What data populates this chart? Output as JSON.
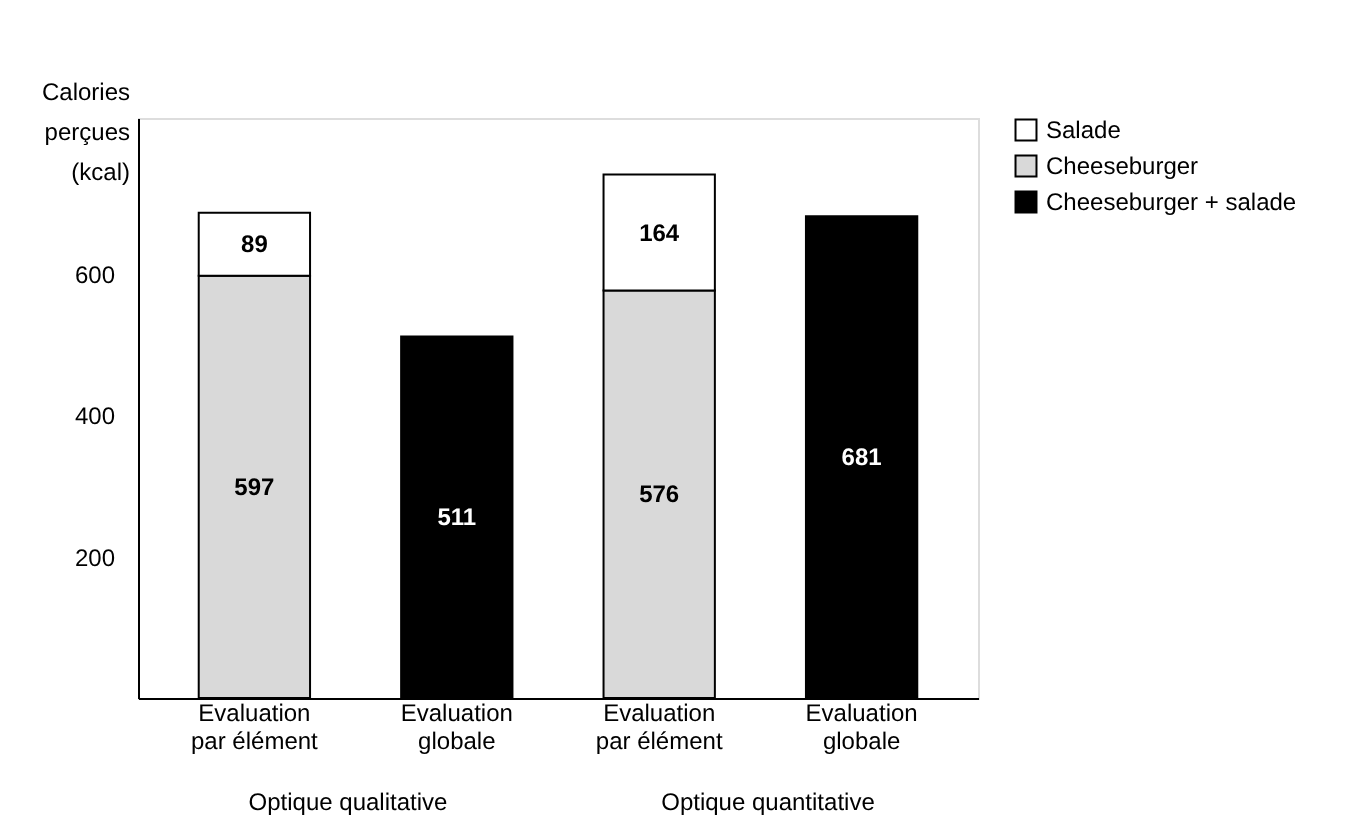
{
  "chart_data": {
    "type": "bar",
    "stacked": true,
    "ylabel": "Calories perçues (kcal)",
    "categories": [
      "Evaluation par élément",
      "Evaluation globale",
      "Evaluation par élément",
      "Evaluation globale"
    ],
    "series": [
      {
        "name": "Cheeseburger",
        "color": "#d9d9d9",
        "values": [
          597,
          null,
          576,
          null
        ]
      },
      {
        "name": "Salade",
        "color": "#ffffff",
        "values": [
          89,
          null,
          164,
          null
        ]
      },
      {
        "name": "Cheeseburger + salade",
        "color": "#000000",
        "values": [
          null,
          511,
          null,
          681
        ]
      }
    ],
    "ylim": [
      0,
      820
    ],
    "yticks": [
      200,
      400,
      600
    ],
    "grid": false,
    "legend": "right",
    "data_labels": true,
    "annotations": [
      "Optique qualitative",
      "Optique quantitative"
    ]
  }
}
